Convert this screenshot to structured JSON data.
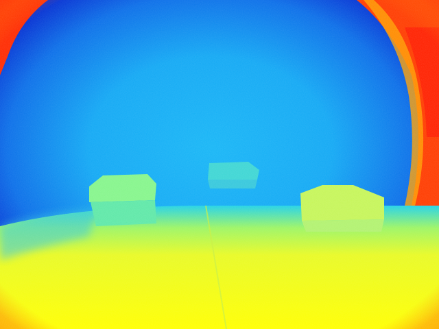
{
  "image": {
    "kind": "depth-map",
    "colormap": "jet",
    "colors": {
      "far": "#0000c8",
      "mid_far": "#0a78f0",
      "mid": "#14b4f5",
      "near_mid": "#5af0a0",
      "near": "#f0fa14",
      "very_near": "#ffff00",
      "edge_hot": "#ff2800",
      "edge_warm": "#ff7a00"
    },
    "objects": [
      {
        "name": "left-box",
        "depth_color": "#82f58c"
      },
      {
        "name": "center-box",
        "depth_color": "#3cd7d2"
      },
      {
        "name": "right-box",
        "depth_color": "#c8f55a"
      }
    ],
    "regions": [
      "fisheye-vignette",
      "floor",
      "background-wall"
    ]
  }
}
